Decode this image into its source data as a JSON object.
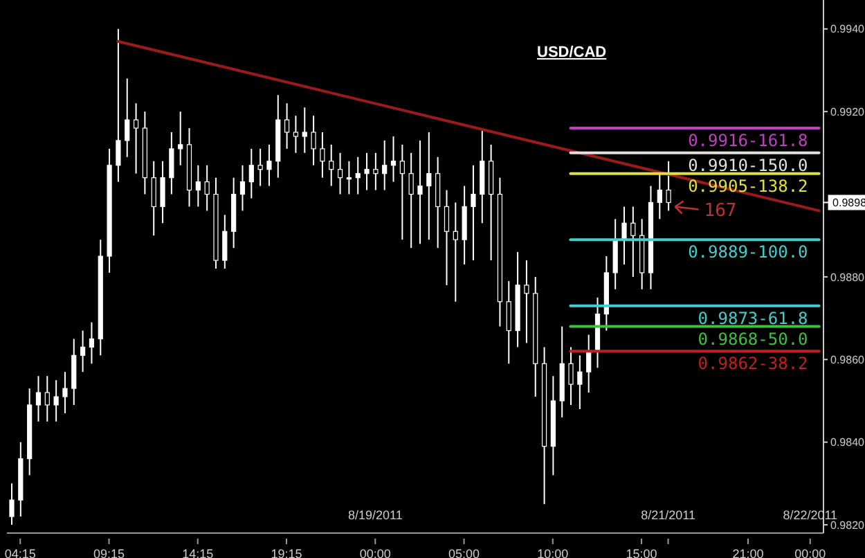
{
  "chart_data": {
    "type": "candlestick",
    "title": "USD/CAD",
    "color": "#ffffff",
    "categories": [
      null,
      "04:15",
      null,
      null,
      null,
      null,
      null,
      null,
      null,
      null,
      null,
      "09:15",
      null,
      null,
      null,
      null,
      null,
      null,
      null,
      null,
      null,
      "14:15",
      null,
      null,
      null,
      null,
      null,
      null,
      null,
      null,
      null,
      "19:15",
      null,
      null,
      null,
      null,
      null,
      null,
      null,
      null,
      null,
      "8/19/2011\n00:00",
      null,
      null,
      null,
      null,
      null,
      null,
      null,
      null,
      null,
      "05:00",
      null,
      null,
      null,
      null,
      null,
      null,
      null,
      null,
      null,
      "10:00",
      null,
      null,
      null,
      null,
      null,
      null,
      null,
      null,
      null,
      "15:00",
      null,
      null,
      "8/21/2011\n",
      null,
      null,
      null,
      null,
      null,
      null,
      null,
      null,
      "21:00",
      null,
      null,
      null,
      null,
      null,
      null,
      "8/22/2011\n00:00",
      null
    ],
    "ohlc": [
      [
        0.9822,
        0.983,
        0.982,
        0.9826
      ],
      [
        0.9826,
        0.984,
        0.9822,
        0.9836
      ],
      [
        0.9836,
        0.9853,
        0.9832,
        0.9849
      ],
      [
        0.9849,
        0.9856,
        0.9845,
        0.9852
      ],
      [
        0.9852,
        0.9856,
        0.9845,
        0.9849
      ],
      [
        0.9849,
        0.9855,
        0.9845,
        0.9851
      ],
      [
        0.9851,
        0.9857,
        0.9847,
        0.9853
      ],
      [
        0.9853,
        0.9865,
        0.9849,
        0.9861
      ],
      [
        0.9861,
        0.9867,
        0.9857,
        0.9863
      ],
      [
        0.9863,
        0.9869,
        0.9859,
        0.9865
      ],
      [
        0.9865,
        0.9889,
        0.9861,
        0.9885
      ],
      [
        0.9885,
        0.9911,
        0.9881,
        0.9907
      ],
      [
        0.9907,
        0.994,
        0.9903,
        0.9913
      ],
      [
        0.9913,
        0.9928,
        0.9909,
        0.9918
      ],
      [
        0.9918,
        0.9922,
        0.9905,
        0.9916
      ],
      [
        0.9916,
        0.992,
        0.99,
        0.9904
      ],
      [
        0.9904,
        0.9908,
        0.989,
        0.9897
      ],
      [
        0.9897,
        0.9908,
        0.9893,
        0.9904
      ],
      [
        0.9904,
        0.9915,
        0.99,
        0.9911
      ],
      [
        0.9911,
        0.992,
        0.9907,
        0.9912
      ],
      [
        0.9912,
        0.9916,
        0.9897,
        0.9901
      ],
      [
        0.9901,
        0.9907,
        0.9897,
        0.9903
      ],
      [
        0.9903,
        0.9907,
        0.9896,
        0.99
      ],
      [
        0.99,
        0.9904,
        0.9882,
        0.9884
      ],
      [
        0.9884,
        0.9895,
        0.9882,
        0.9891
      ],
      [
        0.9891,
        0.9904,
        0.9887,
        0.99
      ],
      [
        0.99,
        0.9907,
        0.9896,
        0.9903
      ],
      [
        0.9903,
        0.9911,
        0.9899,
        0.9907
      ],
      [
        0.9907,
        0.9911,
        0.9902,
        0.9906
      ],
      [
        0.9906,
        0.9912,
        0.9902,
        0.9908
      ],
      [
        0.9908,
        0.9924,
        0.9904,
        0.9918
      ],
      [
        0.9918,
        0.9922,
        0.9911,
        0.9915
      ],
      [
        0.9915,
        0.9919,
        0.991,
        0.9914
      ],
      [
        0.9914,
        0.9921,
        0.991,
        0.9915
      ],
      [
        0.9915,
        0.9919,
        0.9907,
        0.9911
      ],
      [
        0.9911,
        0.9915,
        0.9904,
        0.9908
      ],
      [
        0.9908,
        0.9912,
        0.9902,
        0.9906
      ],
      [
        0.9906,
        0.991,
        0.99,
        0.9904
      ],
      [
        0.9904,
        0.9908,
        0.99,
        0.9904
      ],
      [
        0.9904,
        0.9909,
        0.99,
        0.9905
      ],
      [
        0.9905,
        0.991,
        0.9901,
        0.9906
      ],
      [
        0.9906,
        0.991,
        0.9901,
        0.9905
      ],
      [
        0.9905,
        0.9913,
        0.9901,
        0.9907
      ],
      [
        0.9907,
        0.9914,
        0.9903,
        0.9908
      ],
      [
        0.9908,
        0.9912,
        0.9889,
        0.9905
      ],
      [
        0.9905,
        0.991,
        0.9887,
        0.99
      ],
      [
        0.99,
        0.9913,
        0.9888,
        0.9902
      ],
      [
        0.9902,
        0.9915,
        0.9889,
        0.9905
      ],
      [
        0.9905,
        0.9909,
        0.9887,
        0.9897
      ],
      [
        0.9897,
        0.9901,
        0.9878,
        0.9891
      ],
      [
        0.9891,
        0.9898,
        0.9874,
        0.9889
      ],
      [
        0.9889,
        0.9902,
        0.9883,
        0.9897
      ],
      [
        0.9897,
        0.9907,
        0.9884,
        0.99
      ],
      [
        0.99,
        0.9916,
        0.9893,
        0.9908
      ],
      [
        0.9908,
        0.9912,
        0.9884,
        0.99
      ],
      [
        0.99,
        0.9904,
        0.9868,
        0.9874
      ],
      [
        0.9874,
        0.9879,
        0.9859,
        0.9867
      ],
      [
        0.9867,
        0.9886,
        0.9863,
        0.9878
      ],
      [
        0.9878,
        0.9884,
        0.9864,
        0.9876
      ],
      [
        0.9876,
        0.988,
        0.9851,
        0.9859
      ],
      [
        0.9859,
        0.9863,
        0.9825,
        0.9839
      ],
      [
        0.9839,
        0.9856,
        0.9832,
        0.985
      ],
      [
        0.985,
        0.9868,
        0.9846,
        0.9859
      ],
      [
        0.9859,
        0.9863,
        0.9849,
        0.9854
      ],
      [
        0.9854,
        0.9861,
        0.9848,
        0.9857
      ],
      [
        0.9857,
        0.9866,
        0.9852,
        0.9862
      ],
      [
        0.9862,
        0.9875,
        0.9858,
        0.9871
      ],
      [
        0.9871,
        0.9885,
        0.9867,
        0.9881
      ],
      [
        0.9881,
        0.9894,
        0.9877,
        0.9889
      ],
      [
        0.9889,
        0.9897,
        0.9883,
        0.9893
      ],
      [
        0.9893,
        0.9897,
        0.988,
        0.989
      ],
      [
        0.989,
        0.9894,
        0.9877,
        0.9881
      ],
      [
        0.9881,
        0.9902,
        0.9877,
        0.9898
      ],
      [
        0.9898,
        0.9905,
        0.9894,
        0.9901
      ],
      [
        0.9901,
        0.9908,
        0.9896,
        0.9898
      ],
      null,
      null,
      null,
      null,
      null,
      null,
      null,
      null,
      null,
      null,
      null,
      null,
      null,
      null,
      null,
      null,
      null
    ],
    "series": [
      {
        "type": "line",
        "color": "#9b1b1b",
        "values": [
          null,
          null,
          null,
          null,
          null,
          null,
          null,
          null,
          null,
          null,
          null,
          null,
          0.9937,
          null,
          null,
          null,
          null,
          null,
          null,
          null,
          null,
          null,
          null,
          null,
          null,
          null,
          null,
          null,
          null,
          null,
          null,
          null,
          null,
          null,
          null,
          null,
          null,
          null,
          null,
          null,
          null,
          null,
          null,
          null,
          null,
          null,
          null,
          null,
          null,
          null,
          null,
          null,
          null,
          null,
          null,
          null,
          null,
          null,
          null,
          null,
          null,
          null,
          null,
          null,
          null,
          null,
          null,
          null,
          null,
          null,
          null,
          null,
          null,
          null,
          null,
          null,
          null,
          null,
          null,
          null,
          null,
          null,
          null,
          null,
          null,
          null,
          null,
          null,
          null,
          null,
          null,
          0.9896
        ]
      },
      {
        "type": "line",
        "name": "0.9916-161.8",
        "color": "#c040c0",
        "values": [
          null,
          null,
          null,
          null,
          null,
          null,
          null,
          null,
          null,
          null,
          null,
          null,
          null,
          null,
          null,
          null,
          null,
          null,
          null,
          null,
          null,
          null,
          null,
          null,
          null,
          null,
          null,
          null,
          null,
          null,
          null,
          null,
          null,
          null,
          null,
          null,
          null,
          null,
          null,
          null,
          null,
          null,
          null,
          null,
          null,
          null,
          null,
          null,
          null,
          null,
          null,
          null,
          null,
          null,
          null,
          null,
          null,
          null,
          null,
          null,
          null,
          null,
          null,
          0.9916,
          null,
          null,
          null,
          null,
          null,
          null,
          null,
          null,
          null,
          null,
          null,
          null,
          null,
          null,
          null,
          null,
          null,
          null,
          null,
          null,
          null,
          null,
          null,
          null,
          null,
          null,
          null,
          0.9916
        ]
      },
      {
        "type": "line",
        "name": "0.9910-150.0",
        "color": "#e0e0e0",
        "values": [
          null,
          null,
          null,
          null,
          null,
          null,
          null,
          null,
          null,
          null,
          null,
          null,
          null,
          null,
          null,
          null,
          null,
          null,
          null,
          null,
          null,
          null,
          null,
          null,
          null,
          null,
          null,
          null,
          null,
          null,
          null,
          null,
          null,
          null,
          null,
          null,
          null,
          null,
          null,
          null,
          null,
          null,
          null,
          null,
          null,
          null,
          null,
          null,
          null,
          null,
          null,
          null,
          null,
          null,
          null,
          null,
          null,
          null,
          null,
          null,
          null,
          null,
          null,
          0.991,
          null,
          null,
          null,
          null,
          null,
          null,
          null,
          null,
          null,
          null,
          null,
          null,
          null,
          null,
          null,
          null,
          null,
          null,
          null,
          null,
          null,
          null,
          null,
          null,
          null,
          null,
          null,
          0.991
        ]
      },
      {
        "type": "line",
        "name": "0.9905-138.2",
        "color": "#e0e040",
        "values": [
          null,
          null,
          null,
          null,
          null,
          null,
          null,
          null,
          null,
          null,
          null,
          null,
          null,
          null,
          null,
          null,
          null,
          null,
          null,
          null,
          null,
          null,
          null,
          null,
          null,
          null,
          null,
          null,
          null,
          null,
          null,
          null,
          null,
          null,
          null,
          null,
          null,
          null,
          null,
          null,
          null,
          null,
          null,
          null,
          null,
          null,
          null,
          null,
          null,
          null,
          null,
          null,
          null,
          null,
          null,
          null,
          null,
          null,
          null,
          null,
          null,
          null,
          null,
          0.9905,
          null,
          null,
          null,
          null,
          null,
          null,
          null,
          null,
          null,
          null,
          null,
          null,
          null,
          null,
          null,
          null,
          null,
          null,
          null,
          null,
          null,
          null,
          null,
          null,
          null,
          null,
          null,
          0.9905
        ]
      },
      {
        "type": "line",
        "name": "0.9889-100.0",
        "color": "#40d0d0",
        "values": [
          null,
          null,
          null,
          null,
          null,
          null,
          null,
          null,
          null,
          null,
          null,
          null,
          null,
          null,
          null,
          null,
          null,
          null,
          null,
          null,
          null,
          null,
          null,
          null,
          null,
          null,
          null,
          null,
          null,
          null,
          null,
          null,
          null,
          null,
          null,
          null,
          null,
          null,
          null,
          null,
          null,
          null,
          null,
          null,
          null,
          null,
          null,
          null,
          null,
          null,
          null,
          null,
          null,
          null,
          null,
          null,
          null,
          null,
          null,
          null,
          null,
          null,
          null,
          0.9889,
          null,
          null,
          null,
          null,
          null,
          null,
          null,
          null,
          null,
          null,
          null,
          null,
          null,
          null,
          null,
          null,
          null,
          null,
          null,
          null,
          null,
          null,
          null,
          null,
          null,
          null,
          null,
          0.9889
        ]
      },
      {
        "type": "line",
        "name": "0.9873-61.8",
        "color": "#40d0d0",
        "values": [
          null,
          null,
          null,
          null,
          null,
          null,
          null,
          null,
          null,
          null,
          null,
          null,
          null,
          null,
          null,
          null,
          null,
          null,
          null,
          null,
          null,
          null,
          null,
          null,
          null,
          null,
          null,
          null,
          null,
          null,
          null,
          null,
          null,
          null,
          null,
          null,
          null,
          null,
          null,
          null,
          null,
          null,
          null,
          null,
          null,
          null,
          null,
          null,
          null,
          null,
          null,
          null,
          null,
          null,
          null,
          null,
          null,
          null,
          null,
          null,
          null,
          null,
          null,
          0.9873,
          null,
          null,
          null,
          null,
          null,
          null,
          null,
          null,
          null,
          null,
          null,
          null,
          null,
          null,
          null,
          null,
          null,
          null,
          null,
          null,
          null,
          null,
          null,
          null,
          null,
          null,
          null,
          0.9873
        ]
      },
      {
        "type": "line",
        "name": "0.9868-50.0",
        "color": "#40c040",
        "values": [
          null,
          null,
          null,
          null,
          null,
          null,
          null,
          null,
          null,
          null,
          null,
          null,
          null,
          null,
          null,
          null,
          null,
          null,
          null,
          null,
          null,
          null,
          null,
          null,
          null,
          null,
          null,
          null,
          null,
          null,
          null,
          null,
          null,
          null,
          null,
          null,
          null,
          null,
          null,
          null,
          null,
          null,
          null,
          null,
          null,
          null,
          null,
          null,
          null,
          null,
          null,
          null,
          null,
          null,
          null,
          null,
          null,
          null,
          null,
          null,
          null,
          null,
          null,
          0.9868,
          null,
          null,
          null,
          null,
          null,
          null,
          null,
          null,
          null,
          null,
          null,
          null,
          null,
          null,
          null,
          null,
          null,
          null,
          null,
          null,
          null,
          null,
          null,
          null,
          null,
          null,
          null,
          0.9868
        ]
      },
      {
        "type": "line",
        "name": "0.9862-38.2",
        "color": "#c02020",
        "values": [
          null,
          null,
          null,
          null,
          null,
          null,
          null,
          null,
          null,
          null,
          null,
          null,
          null,
          null,
          null,
          null,
          null,
          null,
          null,
          null,
          null,
          null,
          null,
          null,
          null,
          null,
          null,
          null,
          null,
          null,
          null,
          null,
          null,
          null,
          null,
          null,
          null,
          null,
          null,
          null,
          null,
          null,
          null,
          null,
          null,
          null,
          null,
          null,
          null,
          null,
          null,
          null,
          null,
          null,
          null,
          null,
          null,
          null,
          null,
          null,
          null,
          null,
          null,
          0.9862,
          null,
          null,
          null,
          null,
          null,
          null,
          null,
          null,
          null,
          null,
          null,
          null,
          null,
          null,
          null,
          null,
          null,
          null,
          null,
          null,
          null,
          null,
          null,
          null,
          null,
          null,
          null,
          0.9862
        ]
      }
    ],
    "ylim": [
      0.9818,
      0.9947
    ],
    "yticks": [
      {
        "value": 0.982,
        "label": "0.9820"
      },
      {
        "value": 0.984,
        "label": "0.9840"
      },
      {
        "value": 0.986,
        "label": "0.9860"
      },
      {
        "value": 0.988,
        "label": "0.9880"
      },
      {
        "value": 0.992,
        "label": "0.9920"
      },
      {
        "value": 0.994,
        "label": "0.9940"
      }
    ],
    "ref_lines": [
      {
        "axis": "y",
        "value": 0.9898,
        "label": "0.9898",
        "color": "#ffffff"
      }
    ],
    "annotations": [
      "167"
    ]
  }
}
